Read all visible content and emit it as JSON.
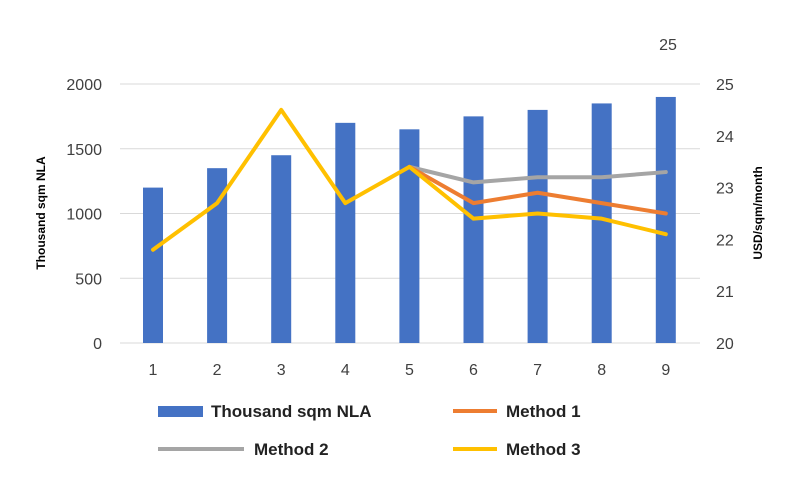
{
  "chart_data": {
    "type": "bar+line",
    "title": "",
    "stray_label": "25",
    "xlabel": "",
    "ylabel_left": "Thousand sqm NLA",
    "ylabel_right": "USD/sqm/month",
    "categories": [
      "1",
      "2",
      "3",
      "4",
      "5",
      "6",
      "7",
      "8",
      "9"
    ],
    "ylim_left": [
      0,
      2000
    ],
    "yticks_left": [
      "0",
      "500",
      "1000",
      "1500",
      "2000"
    ],
    "ylim_right": [
      20,
      25
    ],
    "yticks_right": [
      "20",
      "21",
      "22",
      "23",
      "24",
      "25"
    ],
    "grid": true,
    "legend_position": "bottom",
    "bars": {
      "name": "Thousand sqm NLA",
      "color": "#4472C4",
      "axis": "left",
      "values": [
        1200,
        1350,
        1450,
        1700,
        1650,
        1750,
        1800,
        1850,
        1900
      ]
    },
    "series": [
      {
        "name": "Method 1",
        "color": "#ED7D31",
        "axis": "right",
        "values": [
          null,
          null,
          null,
          null,
          23.4,
          22.7,
          22.9,
          22.7,
          22.5
        ]
      },
      {
        "name": "Method 2",
        "color": "#A5A5A5",
        "axis": "right",
        "values": [
          null,
          null,
          null,
          null,
          23.4,
          23.1,
          23.2,
          23.2,
          23.3
        ]
      },
      {
        "name": "Method 3",
        "color": "#FFC000",
        "axis": "right",
        "values": [
          21.8,
          22.7,
          24.5,
          22.7,
          23.4,
          22.4,
          22.5,
          22.4,
          22.1
        ]
      }
    ]
  }
}
